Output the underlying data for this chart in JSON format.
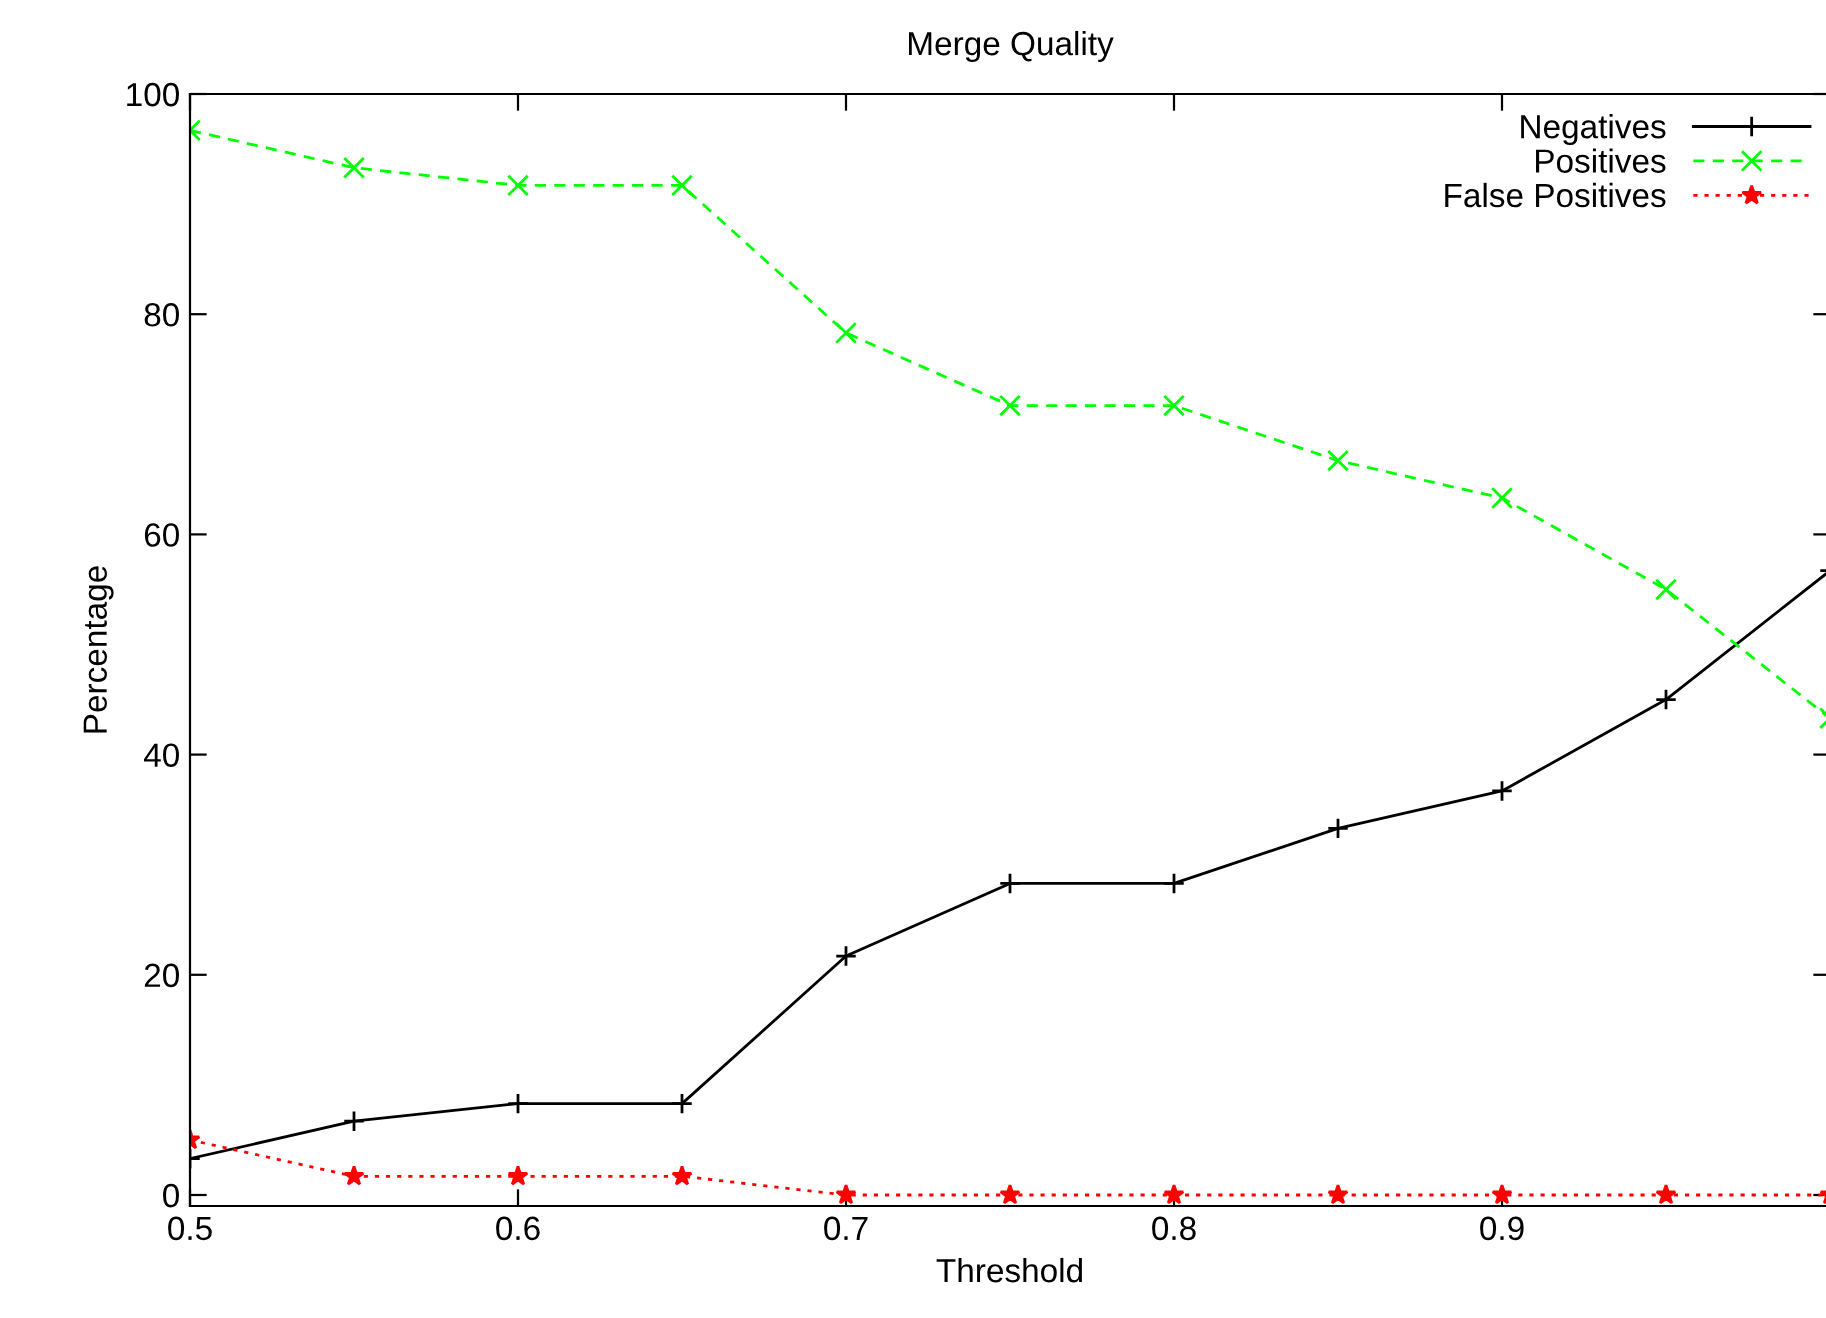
{
  "chart_data": {
    "type": "line",
    "title": "Merge Quality",
    "xlabel": "Threshold",
    "ylabel": "Percentage",
    "x": [
      0.5,
      0.55,
      0.6,
      0.65,
      0.7,
      0.75,
      0.8,
      0.85,
      0.9,
      0.95,
      1.0
    ],
    "series": [
      {
        "name": "Negatives",
        "color": "#000000",
        "marker": "plus",
        "line_style": "solid",
        "values": [
          3.3,
          6.7,
          8.3,
          8.3,
          21.7,
          28.3,
          28.3,
          33.3,
          36.7,
          45,
          56.7
        ]
      },
      {
        "name": "Positives",
        "color": "#00ff00",
        "marker": "cross",
        "line_style": "dashed",
        "values": [
          96.7,
          93.3,
          91.7,
          91.7,
          78.3,
          71.7,
          71.7,
          66.7,
          63.3,
          55,
          43.3
        ]
      },
      {
        "name": "False Positives",
        "color": "#ff0000",
        "marker": "star",
        "line_style": "dotted",
        "values": [
          5,
          1.7,
          1.7,
          1.7,
          0,
          0,
          0,
          0,
          0,
          0,
          0
        ]
      }
    ],
    "xlim": [
      0.5,
      1.0
    ],
    "xticks": [
      0.5,
      0.6,
      0.7,
      0.8,
      0.9,
      {
        "value": 1.0,
        "label": null
      }
    ],
    "ylim": [
      -1,
      100
    ],
    "yticks": [
      0,
      20,
      40,
      60,
      80,
      100
    ],
    "grid": false,
    "legend": "top right"
  }
}
